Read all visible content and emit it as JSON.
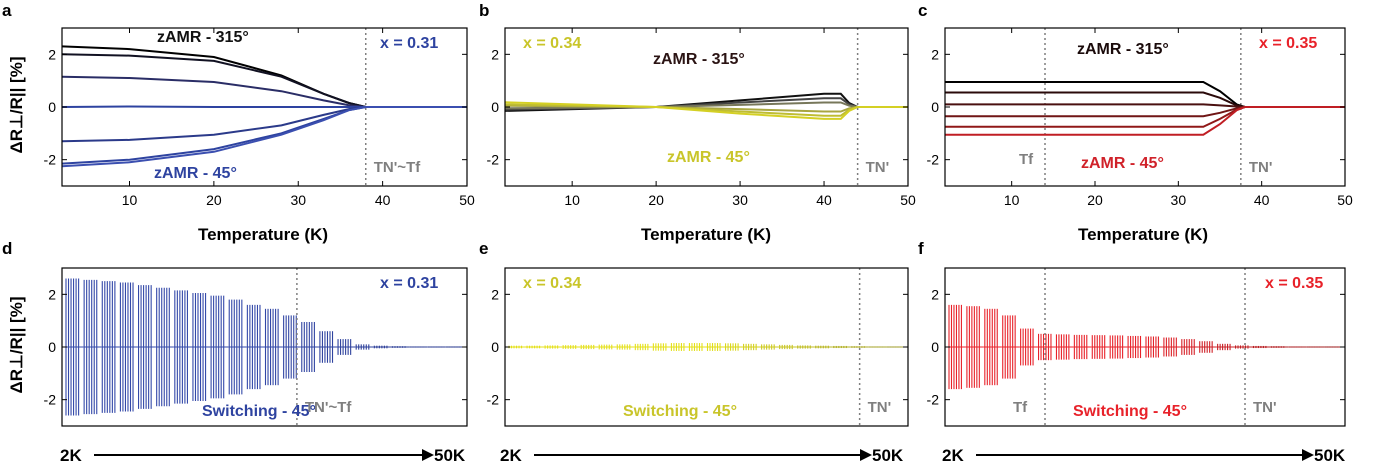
{
  "figure": {
    "ylabel": "ΔR⊥/R|| [%]",
    "top_xlabel": "Temperature (K)",
    "arrow_start": "2K",
    "arrow_end": "50K"
  },
  "chart_data": [
    {
      "panel": "a",
      "type": "line",
      "x_range": [
        2,
        50
      ],
      "ylim": [
        -3,
        3
      ],
      "xticks": [
        "10",
        "20",
        "30",
        "40",
        "50"
      ],
      "yticks": [
        "2",
        "0",
        "-2"
      ],
      "xlabel": "Temperature (K)",
      "annotations": {
        "top_label": "zAMR - 315°",
        "bottom_label": "zAMR - 45°",
        "x_label": "x = 0.31",
        "transition_label": "TN'~Tf"
      },
      "transition_T": 38,
      "colors": {
        "x": "#2e43a0",
        "top": "#111111",
        "bottom": "#2e43a0",
        "trans": "#7f7f7f"
      },
      "series": [
        {
          "color": "#000000",
          "values": [
            [
              2,
              2.3
            ],
            [
              10,
              2.2
            ],
            [
              20,
              1.9
            ],
            [
              28,
              1.2
            ],
            [
              33,
              0.5
            ],
            [
              36,
              0.15
            ],
            [
              38,
              0
            ],
            [
              50,
              0
            ]
          ]
        },
        {
          "color": "#111122",
          "values": [
            [
              2,
              2.0
            ],
            [
              10,
              1.95
            ],
            [
              20,
              1.75
            ],
            [
              28,
              1.15
            ],
            [
              33,
              0.5
            ],
            [
              36,
              0.15
            ],
            [
              38,
              0
            ],
            [
              50,
              0
            ]
          ]
        },
        {
          "color": "#2a2d66",
          "values": [
            [
              2,
              1.15
            ],
            [
              10,
              1.1
            ],
            [
              20,
              0.95
            ],
            [
              28,
              0.6
            ],
            [
              33,
              0.25
            ],
            [
              36,
              0.07
            ],
            [
              38,
              0
            ],
            [
              50,
              0
            ]
          ]
        },
        {
          "color": "#2e43a0",
          "values": [
            [
              2,
              0.0
            ],
            [
              10,
              0.02
            ],
            [
              20,
              0.0
            ],
            [
              30,
              0.0
            ],
            [
              38,
              0
            ],
            [
              50,
              0
            ]
          ]
        },
        {
          "color": "#2b3a8a",
          "values": [
            [
              2,
              -1.3
            ],
            [
              10,
              -1.25
            ],
            [
              20,
              -1.05
            ],
            [
              28,
              -0.7
            ],
            [
              33,
              -0.3
            ],
            [
              36,
              -0.08
            ],
            [
              38,
              0
            ],
            [
              50,
              0
            ]
          ]
        },
        {
          "color": "#2e43a0",
          "values": [
            [
              2,
              -2.15
            ],
            [
              10,
              -2.0
            ],
            [
              20,
              -1.6
            ],
            [
              28,
              -1.0
            ],
            [
              33,
              -0.45
            ],
            [
              36,
              -0.12
            ],
            [
              38,
              0
            ],
            [
              50,
              0
            ]
          ]
        },
        {
          "color": "#3b4fb0",
          "values": [
            [
              2,
              -2.25
            ],
            [
              10,
              -2.1
            ],
            [
              20,
              -1.7
            ],
            [
              28,
              -1.05
            ],
            [
              33,
              -0.5
            ],
            [
              36,
              -0.12
            ],
            [
              38,
              0
            ],
            [
              50,
              0
            ]
          ]
        }
      ]
    },
    {
      "panel": "b",
      "type": "line",
      "x_range": [
        2,
        50
      ],
      "ylim": [
        -3,
        3
      ],
      "xticks": [
        "10",
        "20",
        "30",
        "40",
        "50"
      ],
      "yticks": [
        "2",
        "0",
        "-2"
      ],
      "xlabel": "Temperature (K)",
      "annotations": {
        "top_label": "zAMR - 315°",
        "bottom_label": "zAMR - 45°",
        "x_label": "x = 0.34",
        "transition_label": "TN'"
      },
      "transition_T": 44,
      "colors": {
        "x": "#c9c52a",
        "top": "#2b1414",
        "bottom": "#c9c52a",
        "trans": "#7f7f7f"
      },
      "series": [
        {
          "color": "#111111",
          "values": [
            [
              2,
              -0.15
            ],
            [
              20,
              0
            ],
            [
              30,
              0.25
            ],
            [
              40,
              0.5
            ],
            [
              42,
              0.5
            ],
            [
              43,
              0.15
            ],
            [
              44,
              0
            ],
            [
              50,
              0
            ]
          ]
        },
        {
          "color": "#444444",
          "values": [
            [
              2,
              -0.1
            ],
            [
              20,
              0
            ],
            [
              30,
              0.17
            ],
            [
              40,
              0.33
            ],
            [
              42,
              0.33
            ],
            [
              43,
              0.1
            ],
            [
              44,
              0
            ],
            [
              50,
              0
            ]
          ]
        },
        {
          "color": "#77775a",
          "values": [
            [
              2,
              -0.05
            ],
            [
              20,
              0
            ],
            [
              30,
              0.08
            ],
            [
              40,
              0.17
            ],
            [
              42,
              0.17
            ],
            [
              43,
              0.05
            ],
            [
              44,
              0
            ],
            [
              50,
              0
            ]
          ]
        },
        {
          "color": "#a8a640",
          "values": [
            [
              2,
              0.05
            ],
            [
              20,
              0
            ],
            [
              30,
              -0.08
            ],
            [
              40,
              -0.17
            ],
            [
              42,
              -0.17
            ],
            [
              43,
              -0.05
            ],
            [
              44,
              0
            ],
            [
              50,
              0
            ]
          ]
        },
        {
          "color": "#bfbd33",
          "values": [
            [
              2,
              0.1
            ],
            [
              20,
              0
            ],
            [
              30,
              -0.17
            ],
            [
              40,
              -0.33
            ],
            [
              42,
              -0.33
            ],
            [
              43,
              -0.1
            ],
            [
              44,
              0
            ],
            [
              50,
              0
            ]
          ]
        },
        {
          "color": "#d4d024",
          "values": [
            [
              2,
              0.18
            ],
            [
              20,
              0
            ],
            [
              30,
              -0.25
            ],
            [
              40,
              -0.45
            ],
            [
              42,
              -0.45
            ],
            [
              43,
              -0.15
            ],
            [
              44,
              0
            ],
            [
              50,
              0
            ]
          ]
        }
      ]
    },
    {
      "panel": "c",
      "type": "line",
      "x_range": [
        2,
        50
      ],
      "ylim": [
        -3,
        3
      ],
      "xticks": [
        "10",
        "20",
        "30",
        "40",
        "50"
      ],
      "yticks": [
        "2",
        "0",
        "-2"
      ],
      "xlabel": "Temperature (K)",
      "annotations": {
        "top_label": "zAMR - 315°",
        "bottom_label": "zAMR - 45°",
        "x_label": "x = 0.35",
        "transition_label": "TN'",
        "tf_label": "Tf"
      },
      "transition_T": 37.5,
      "tf_T": 14,
      "colors": {
        "x": "#e8222a",
        "top": "#1a0a0a",
        "bottom": "#d0222a",
        "trans": "#7f7f7f"
      },
      "series": [
        {
          "color": "#000000",
          "values": [
            [
              2,
              0.95
            ],
            [
              20,
              0.95
            ],
            [
              33,
              0.95
            ],
            [
              35,
              0.6
            ],
            [
              37,
              0.1
            ],
            [
              38,
              0
            ],
            [
              50,
              0
            ]
          ]
        },
        {
          "color": "#2a0a0a",
          "values": [
            [
              2,
              0.55
            ],
            [
              20,
              0.55
            ],
            [
              33,
              0.55
            ],
            [
              35,
              0.35
            ],
            [
              37,
              0.06
            ],
            [
              38,
              0
            ],
            [
              50,
              0
            ]
          ]
        },
        {
          "color": "#4a1010",
          "values": [
            [
              2,
              0.1
            ],
            [
              20,
              0.1
            ],
            [
              33,
              0.1
            ],
            [
              35,
              0.06
            ],
            [
              37,
              0.02
            ],
            [
              38,
              0
            ],
            [
              50,
              0
            ]
          ]
        },
        {
          "color": "#701515",
          "values": [
            [
              2,
              -0.35
            ],
            [
              20,
              -0.35
            ],
            [
              33,
              -0.35
            ],
            [
              35,
              -0.22
            ],
            [
              37,
              -0.05
            ],
            [
              38,
              0
            ],
            [
              50,
              0
            ]
          ]
        },
        {
          "color": "#901818",
          "values": [
            [
              2,
              -0.75
            ],
            [
              20,
              -0.75
            ],
            [
              33,
              -0.75
            ],
            [
              35,
              -0.45
            ],
            [
              37,
              -0.1
            ],
            [
              38,
              0
            ],
            [
              50,
              0
            ]
          ]
        },
        {
          "color": "#c01e24",
          "values": [
            [
              2,
              -1.05
            ],
            [
              20,
              -1.05
            ],
            [
              33,
              -1.05
            ],
            [
              35,
              -0.65
            ],
            [
              37,
              -0.12
            ],
            [
              38,
              0
            ],
            [
              50,
              0
            ]
          ]
        }
      ]
    },
    {
      "panel": "d",
      "type": "line",
      "ylim": [
        -3,
        3
      ],
      "yticks": [
        "2",
        "0",
        "-2"
      ],
      "annotations": {
        "label": "Switching - 45°",
        "x_label": "x = 0.31",
        "transition_label": "TN'~Tf"
      },
      "transition_frac": 0.58,
      "colors": {
        "trace": "#3348a8",
        "x": "#2e43a0",
        "trans": "#7f7f7f",
        "end": "#243488"
      },
      "amplitudes": [
        2.6,
        2.55,
        2.5,
        2.45,
        2.35,
        2.25,
        2.15,
        2.05,
        1.95,
        1.8,
        1.6,
        1.45,
        1.2,
        0.95,
        0.6,
        0.3,
        0.1,
        0.05,
        0.03,
        0.02,
        0.02,
        0.02
      ]
    },
    {
      "panel": "e",
      "type": "line",
      "ylim": [
        -3,
        3
      ],
      "yticks": [
        "2",
        "0",
        "-2"
      ],
      "annotations": {
        "label": "Switching - 45°",
        "x_label": "x = 0.34",
        "transition_label": "TN'"
      },
      "transition_frac": 0.88,
      "colors": {
        "trace": "#e4e018",
        "x": "#c9c52a",
        "trans": "#7f7f7f",
        "end": "#8f8d30"
      },
      "amplitudes": [
        0.05,
        0.05,
        0.06,
        0.07,
        0.08,
        0.09,
        0.1,
        0.12,
        0.14,
        0.15,
        0.15,
        0.15,
        0.14,
        0.12,
        0.1,
        0.08,
        0.06,
        0.05,
        0.04,
        0.03,
        0.02,
        0.02
      ]
    },
    {
      "panel": "f",
      "type": "line",
      "ylim": [
        -3,
        3
      ],
      "yticks": [
        "2",
        "0",
        "-2"
      ],
      "annotations": {
        "label": "Switching - 45°",
        "x_label": "x = 0.35",
        "transition_label": "TN'",
        "tf_label": "Tf"
      },
      "transition_frac": 0.75,
      "tf_frac": 0.25,
      "colors": {
        "trace": "#e8222a",
        "x": "#e8222a",
        "trans": "#7f7f7f",
        "end": "#8a1a1a"
      },
      "amplitudes": [
        1.6,
        1.55,
        1.45,
        1.2,
        0.7,
        0.5,
        0.48,
        0.46,
        0.45,
        0.44,
        0.42,
        0.4,
        0.36,
        0.3,
        0.22,
        0.12,
        0.06,
        0.04,
        0.03,
        0.02,
        0.02,
        0.02
      ]
    }
  ]
}
